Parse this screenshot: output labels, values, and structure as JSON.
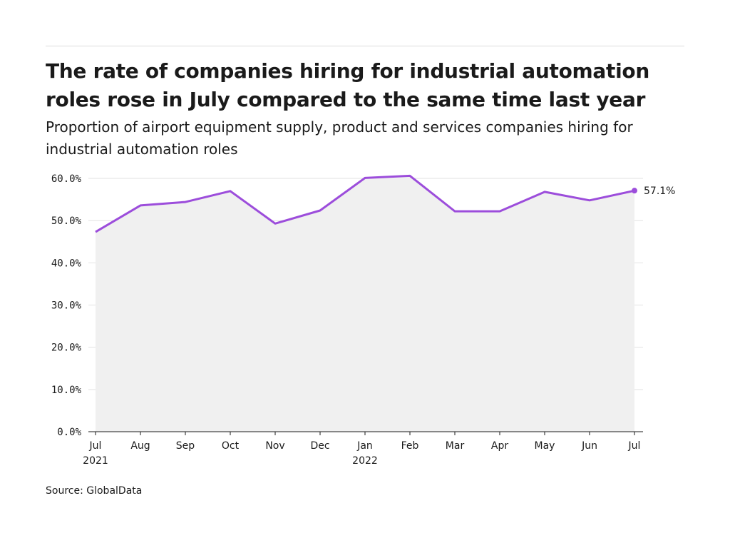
{
  "title": "The rate of companies hiring for industrial automation roles rose in July compared to the same time last year",
  "subtitle": "Proportion of airport equipment supply, product and services companies hiring for industrial automation roles",
  "source": "Source: GlobalData",
  "colors": {
    "line": "#9c4ddb",
    "area": "#f0f0f0",
    "grid": "#e2e2e2",
    "axis": "#1a1a1a"
  },
  "chart_data": {
    "type": "area",
    "categories": [
      "Jul",
      "Aug",
      "Sep",
      "Oct",
      "Nov",
      "Dec",
      "Jan",
      "Feb",
      "Mar",
      "Apr",
      "May",
      "Jun",
      "Jul"
    ],
    "year_labels": [
      "2021",
      "",
      "",
      "",
      "",
      "",
      "2022",
      "",
      "",
      "",
      "",
      "",
      ""
    ],
    "values": [
      47.3,
      53.6,
      54.4,
      57.0,
      49.3,
      52.4,
      60.1,
      60.6,
      52.2,
      52.2,
      56.8,
      54.8,
      57.1
    ],
    "yticks": [
      "0.0%",
      "10.0%",
      "20.0%",
      "30.0%",
      "40.0%",
      "50.0%",
      "60.0%"
    ],
    "ylim": [
      0,
      60
    ],
    "end_label": "57.1%",
    "grid": true
  }
}
